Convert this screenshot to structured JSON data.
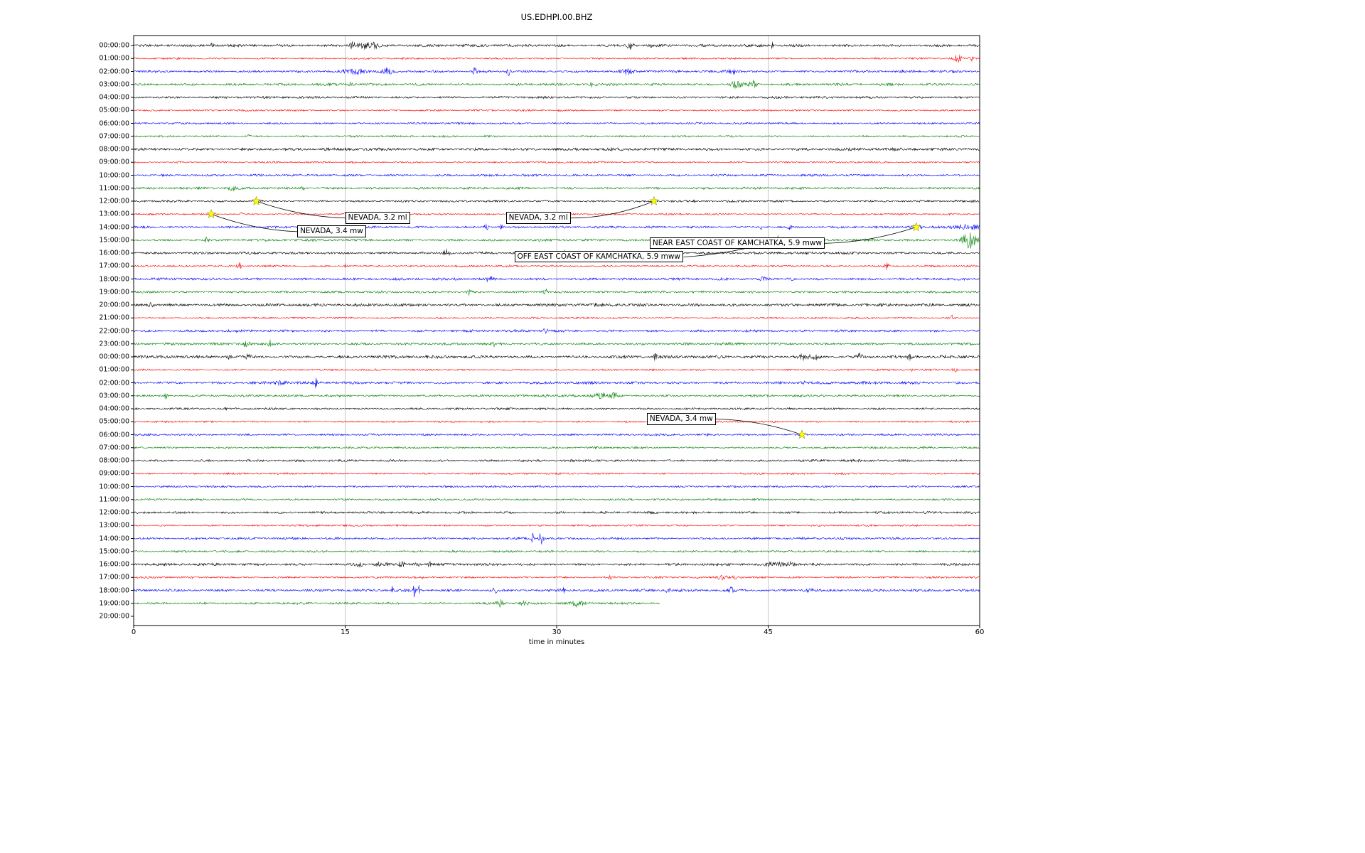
{
  "chart_data": {
    "type": "line",
    "subtype": "seismogram-dayplot",
    "title": "US.EDHPI.00.BHZ",
    "xlabel": "time in minutes",
    "xlim": [
      0,
      60
    ],
    "x_ticks": [
      0,
      15,
      30,
      45,
      60
    ],
    "x_tick_labels": [
      "0",
      "15",
      "30",
      "45",
      "60"
    ],
    "grid": "vertical gridlines at 15, 30, 45 minutes",
    "legend": "none",
    "colors": {
      "trace_cycle": [
        "#000000",
        "#ff0000",
        "#0000ff",
        "#008000"
      ],
      "star": "#ffff00",
      "grid": "#b8b8b8",
      "axis": "#000000"
    },
    "rows": [
      {
        "label": "00:00:00",
        "color": "#000000",
        "amp": 1.5,
        "bursts": [
          [
            5.6,
            2.5,
            0.1
          ],
          [
            15.5,
            4,
            0.15
          ],
          [
            16.3,
            3.5,
            0.35
          ],
          [
            17.1,
            3,
            0.2
          ],
          [
            35.2,
            4,
            0.2
          ],
          [
            36.6,
            3,
            0.1
          ],
          [
            45.3,
            6,
            0.06
          ]
        ]
      },
      {
        "label": "01:00:00",
        "color": "#ff0000",
        "amp": 1.0,
        "bursts": [
          [
            58.5,
            4.5,
            0.25
          ],
          [
            59.4,
            3,
            0.1
          ]
        ]
      },
      {
        "label": "02:00:00",
        "color": "#0000ff",
        "amp": 1.4,
        "bursts": [
          [
            15.8,
            3,
            0.5
          ],
          [
            18,
            2.5,
            0.3
          ],
          [
            24.2,
            4.5,
            0.12
          ],
          [
            26.6,
            5.5,
            0.12
          ],
          [
            35,
            2.5,
            0.3
          ],
          [
            42.5,
            2.5,
            0.4
          ]
        ]
      },
      {
        "label": "03:00:00",
        "color": "#008000",
        "amp": 1.4,
        "bursts": [
          [
            15.4,
            2.5,
            0.1
          ],
          [
            32.6,
            3,
            0.15
          ],
          [
            42.8,
            5,
            0.3
          ],
          [
            43.9,
            4,
            0.2
          ]
        ]
      },
      {
        "label": "04:00:00",
        "color": "#000000",
        "amp": 1.3,
        "bursts": []
      },
      {
        "label": "05:00:00",
        "color": "#ff0000",
        "amp": 1.0,
        "bursts": [
          [
            30.3,
            2,
            0.1
          ]
        ]
      },
      {
        "label": "06:00:00",
        "color": "#0000ff",
        "amp": 1.1,
        "bursts": []
      },
      {
        "label": "07:00:00",
        "color": "#008000",
        "amp": 1.1,
        "bursts": [
          [
            8.2,
            2,
            0.1
          ]
        ]
      },
      {
        "label": "08:00:00",
        "color": "#000000",
        "amp": 1.6,
        "bursts": []
      },
      {
        "label": "09:00:00",
        "color": "#ff0000",
        "amp": 1.0,
        "bursts": []
      },
      {
        "label": "10:00:00",
        "color": "#0000ff",
        "amp": 1.3,
        "bursts": []
      },
      {
        "label": "11:00:00",
        "color": "#008000",
        "amp": 1.3,
        "bursts": [
          [
            7,
            2.5,
            0.15
          ],
          [
            12,
            2,
            0.1
          ]
        ]
      },
      {
        "label": "12:00:00",
        "color": "#000000",
        "amp": 1.2,
        "bursts": []
      },
      {
        "label": "13:00:00",
        "color": "#ff0000",
        "amp": 1.0,
        "bursts": [
          [
            7.6,
            2,
            0.08
          ],
          [
            15,
            2,
            0.08
          ],
          [
            30.2,
            2,
            0.08
          ]
        ]
      },
      {
        "label": "14:00:00",
        "color": "#0000ff",
        "amp": 1.3,
        "bursts": [
          [
            25,
            3.5,
            0.15
          ],
          [
            26.1,
            3,
            0.1
          ],
          [
            44.5,
            2.5,
            0.1
          ],
          [
            46.5,
            2.5,
            0.1
          ],
          [
            55.5,
            2,
            0.3
          ],
          [
            59,
            2.5,
            0.8
          ]
        ]
      },
      {
        "label": "15:00:00",
        "color": "#008000",
        "amp": 1.3,
        "bursts": [
          [
            5.2,
            5,
            0.08
          ],
          [
            59.3,
            11,
            0.35
          ]
        ]
      },
      {
        "label": "16:00:00",
        "color": "#000000",
        "amp": 1.4,
        "bursts": [
          [
            22.2,
            4.5,
            0.15
          ],
          [
            30.6,
            2.5,
            0.1
          ]
        ]
      },
      {
        "label": "17:00:00",
        "color": "#ff0000",
        "amp": 1.1,
        "bursts": [
          [
            7.5,
            3.5,
            0.1
          ],
          [
            15,
            2.5,
            0.08
          ],
          [
            53.4,
            3.5,
            0.12
          ]
        ]
      },
      {
        "label": "18:00:00",
        "color": "#0000ff",
        "amp": 1.4,
        "bursts": [
          [
            25.2,
            2.5,
            0.2
          ],
          [
            44.6,
            2.5,
            0.15
          ],
          [
            46.6,
            2.5,
            0.15
          ]
        ]
      },
      {
        "label": "19:00:00",
        "color": "#008000",
        "amp": 1.3,
        "bursts": [
          [
            23.8,
            3.5,
            0.12
          ],
          [
            29.2,
            3.5,
            0.15
          ]
        ]
      },
      {
        "label": "20:00:00",
        "color": "#000000",
        "amp": 1.7,
        "bursts": [
          [
            1.3,
            3.5,
            0.2
          ]
        ]
      },
      {
        "label": "21:00:00",
        "color": "#ff0000",
        "amp": 1.0,
        "bursts": [
          [
            58,
            3,
            0.15
          ]
        ]
      },
      {
        "label": "22:00:00",
        "color": "#0000ff",
        "amp": 1.4,
        "bursts": [
          [
            29.2,
            3.5,
            0.1
          ]
        ]
      },
      {
        "label": "23:00:00",
        "color": "#008000",
        "amp": 1.4,
        "bursts": [
          [
            8,
            3,
            0.2
          ],
          [
            9.7,
            3.5,
            0.12
          ],
          [
            25.6,
            2.5,
            0.1
          ]
        ]
      },
      {
        "label": "00:00:00",
        "color": "#000000",
        "amp": 1.7,
        "bursts": [
          [
            6.8,
            3,
            0.1
          ],
          [
            8.1,
            3.5,
            0.15
          ],
          [
            37,
            4.5,
            0.08
          ],
          [
            47.6,
            3,
            0.3
          ],
          [
            48.4,
            3,
            0.15
          ],
          [
            51.5,
            3.5,
            0.15
          ],
          [
            55,
            2.5,
            0.1
          ]
        ]
      },
      {
        "label": "01:00:00",
        "color": "#ff0000",
        "amp": 1.0,
        "bursts": [
          [
            55.3,
            2.8,
            0.12
          ],
          [
            58.2,
            2.8,
            0.12
          ]
        ]
      },
      {
        "label": "02:00:00",
        "color": "#0000ff",
        "amp": 1.5,
        "bursts": [
          [
            10.5,
            2.5,
            0.3
          ],
          [
            12.9,
            6,
            0.07
          ],
          [
            47.5,
            2.5,
            0.1
          ]
        ]
      },
      {
        "label": "03:00:00",
        "color": "#008000",
        "amp": 1.3,
        "bursts": [
          [
            2.3,
            3.5,
            0.12
          ],
          [
            29.3,
            2.5,
            0.1
          ],
          [
            33.1,
            3.5,
            0.4
          ],
          [
            34.1,
            3,
            0.2
          ]
        ]
      },
      {
        "label": "04:00:00",
        "color": "#000000",
        "amp": 1.2,
        "bursts": []
      },
      {
        "label": "05:00:00",
        "color": "#ff0000",
        "amp": 1.0,
        "bursts": []
      },
      {
        "label": "06:00:00",
        "color": "#0000ff",
        "amp": 1.2,
        "bursts": []
      },
      {
        "label": "07:00:00",
        "color": "#008000",
        "amp": 1.1,
        "bursts": []
      },
      {
        "label": "08:00:00",
        "color": "#000000",
        "amp": 1.3,
        "bursts": []
      },
      {
        "label": "09:00:00",
        "color": "#ff0000",
        "amp": 1.0,
        "bursts": []
      },
      {
        "label": "10:00:00",
        "color": "#0000ff",
        "amp": 1.1,
        "bursts": []
      },
      {
        "label": "11:00:00",
        "color": "#008000",
        "amp": 1.1,
        "bursts": []
      },
      {
        "label": "12:00:00",
        "color": "#000000",
        "amp": 1.3,
        "bursts": []
      },
      {
        "label": "13:00:00",
        "color": "#ff0000",
        "amp": 1.0,
        "bursts": []
      },
      {
        "label": "14:00:00",
        "color": "#0000ff",
        "amp": 1.3,
        "bursts": [
          [
            28.3,
            6,
            0.08
          ],
          [
            28.9,
            9,
            0.1
          ]
        ]
      },
      {
        "label": "15:00:00",
        "color": "#008000",
        "amp": 1.2,
        "bursts": []
      },
      {
        "label": "16:00:00",
        "color": "#000000",
        "amp": 1.4,
        "bursts": [
          [
            16,
            3,
            0.2
          ],
          [
            17.5,
            3,
            0.3
          ],
          [
            19,
            2.5,
            0.2
          ],
          [
            20.1,
            2.5,
            0.15
          ],
          [
            21,
            2.5,
            0.1
          ],
          [
            45.6,
            3,
            0.4
          ],
          [
            46.6,
            2.5,
            0.2
          ]
        ]
      },
      {
        "label": "17:00:00",
        "color": "#ff0000",
        "amp": 1.1,
        "bursts": [
          [
            33.8,
            2,
            0.1
          ],
          [
            41.8,
            3,
            0.3
          ],
          [
            42.6,
            2.5,
            0.15
          ]
        ]
      },
      {
        "label": "18:00:00",
        "color": "#0000ff",
        "amp": 1.5,
        "bursts": [
          [
            18.4,
            8,
            0.06
          ],
          [
            19.9,
            9,
            0.07
          ],
          [
            20.2,
            6,
            0.05
          ],
          [
            25.6,
            3.5,
            0.15
          ],
          [
            30.5,
            2.5,
            0.2
          ],
          [
            37.9,
            3.5,
            0.12
          ],
          [
            42.4,
            4,
            0.12
          ],
          [
            48,
            2,
            0.3
          ]
        ]
      },
      {
        "label": "19:00:00",
        "color": "#008000",
        "amp": 1.3,
        "end": 37.3,
        "bursts": [
          [
            26,
            4.5,
            0.2
          ],
          [
            27.7,
            4,
            0.15
          ],
          [
            31.4,
            3.5,
            0.3
          ]
        ]
      },
      {
        "label": "20:00:00",
        "color": "#000000",
        "amp": 0,
        "end": 0,
        "bursts": []
      }
    ],
    "events": [
      {
        "label": "NEVADA, 3.2 ml",
        "star_row": 12,
        "star_minute": 8.7,
        "box_minute": 15.0,
        "box_row": 13.3,
        "connect": "left",
        "bend": 10
      },
      {
        "label": "NEVADA, 3.4 mw",
        "star_row": 13,
        "star_minute": 5.5,
        "box_minute": 11.6,
        "box_row": 14.35,
        "connect": "left",
        "bend": 10
      },
      {
        "label": "NEVADA, 3.2 ml",
        "star_row": 12,
        "star_minute": 36.9,
        "box_minute": 26.4,
        "box_row": 13.3,
        "connect": "right",
        "bend": 12
      },
      {
        "label": "NEAR EAST COAST OF KAMCHATKA, 5.9 mww",
        "star_row": 14,
        "star_minute": 55.5,
        "box_minute": 36.6,
        "box_row": 15.25,
        "connect": "right",
        "bend": 10
      },
      {
        "label": "OFF EAST COAST OF KAMCHATKA, 5.9 mww",
        "star_row": 15,
        "star_minute": 45.7,
        "box_minute": 27.0,
        "box_row": 16.3,
        "connect": "right",
        "bend": 8
      },
      {
        "label": "NEVADA, 3.4 mw",
        "star_row": 30,
        "star_minute": 47.4,
        "box_minute": 36.4,
        "box_row": 28.8,
        "connect": "right",
        "bend": -10
      }
    ]
  }
}
